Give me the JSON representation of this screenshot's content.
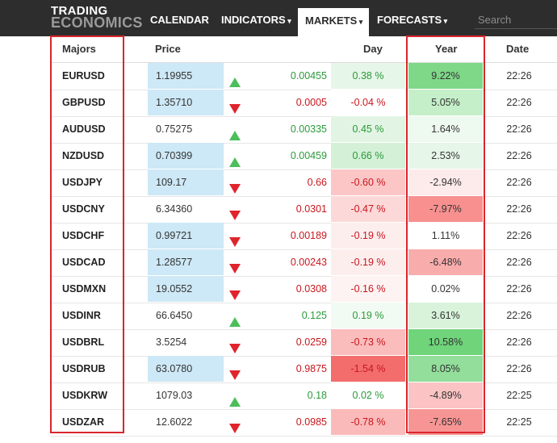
{
  "brand": {
    "line1": "TRADING",
    "line2": "ECONOMICS"
  },
  "nav": [
    {
      "label": "CALENDAR"
    },
    {
      "label": "INDICATORS"
    },
    {
      "label": "MARKETS"
    },
    {
      "label": "FORECASTS"
    }
  ],
  "search": {
    "placeholder": "Search"
  },
  "colors": {
    "up": "#2a9a3a",
    "down": "#c8171e",
    "price_highlight": "#cde8f6"
  },
  "table": {
    "headers": {
      "symbol": "Majors",
      "price": "Price",
      "day": "Day",
      "year": "Year",
      "date": "Date"
    },
    "rows": [
      {
        "symbol": "EURUSD",
        "price": "1.19955",
        "dir": "up",
        "change": "0.00455",
        "day": "0.38 %",
        "year": "9.22%",
        "date": "22:26",
        "price_hl": true,
        "day_bg": "#e6f6e8",
        "year_bg": "#7ed888"
      },
      {
        "symbol": "GBPUSD",
        "price": "1.35710",
        "dir": "down",
        "change": "0.0005",
        "day": "-0.04 %",
        "year": "5.05%",
        "date": "22:26",
        "price_hl": true,
        "day_bg": "#ffffff",
        "year_bg": "#c4efc8"
      },
      {
        "symbol": "AUDUSD",
        "price": "0.75275",
        "dir": "up",
        "change": "0.00335",
        "day": "0.45 %",
        "year": "1.64%",
        "date": "22:26",
        "price_hl": false,
        "day_bg": "#e2f5e4",
        "year_bg": "#eef9ef"
      },
      {
        "symbol": "NZDUSD",
        "price": "0.70399",
        "dir": "up",
        "change": "0.00459",
        "day": "0.66 %",
        "year": "2.53%",
        "date": "22:26",
        "price_hl": true,
        "day_bg": "#d4f1d7",
        "year_bg": "#e6f6e8"
      },
      {
        "symbol": "USDJPY",
        "price": "109.17",
        "dir": "down",
        "change": "0.66",
        "day": "-0.60 %",
        "year": "-2.94%",
        "date": "22:26",
        "price_hl": true,
        "day_bg": "#fcc6c6",
        "year_bg": "#fdeaea"
      },
      {
        "symbol": "USDCNY",
        "price": "6.34360",
        "dir": "down",
        "change": "0.0301",
        "day": "-0.47 %",
        "year": "-7.97%",
        "date": "22:26",
        "price_hl": false,
        "day_bg": "#fdd8d8",
        "year_bg": "#f7908f"
      },
      {
        "symbol": "USDCHF",
        "price": "0.99721",
        "dir": "down",
        "change": "0.00189",
        "day": "-0.19 %",
        "year": "1.11%",
        "date": "22:26",
        "price_hl": true,
        "day_bg": "#fdeeee",
        "year_bg": "#ffffff"
      },
      {
        "symbol": "USDCAD",
        "price": "1.28577",
        "dir": "down",
        "change": "0.00243",
        "day": "-0.19 %",
        "year": "-6.48%",
        "date": "22:26",
        "price_hl": true,
        "day_bg": "#fdeeee",
        "year_bg": "#f9acac"
      },
      {
        "symbol": "USDMXN",
        "price": "19.0552",
        "dir": "down",
        "change": "0.0308",
        "day": "-0.16 %",
        "year": "0.02%",
        "date": "22:26",
        "price_hl": true,
        "day_bg": "#fef3f3",
        "year_bg": "#ffffff"
      },
      {
        "symbol": "USDINR",
        "price": "66.6450",
        "dir": "up",
        "change": "0.125",
        "day": "0.19 %",
        "year": "3.61%",
        "date": "22:26",
        "price_hl": false,
        "day_bg": "#f2fbf3",
        "year_bg": "#d8f3da"
      },
      {
        "symbol": "USDBRL",
        "price": "3.5254",
        "dir": "down",
        "change": "0.0259",
        "day": "-0.73 %",
        "year": "10.58%",
        "date": "22:26",
        "price_hl": false,
        "day_bg": "#fbbcbc",
        "year_bg": "#6fd47a"
      },
      {
        "symbol": "USDRUB",
        "price": "63.0780",
        "dir": "down",
        "change": "0.9875",
        "day": "-1.54 %",
        "year": "8.05%",
        "date": "22:26",
        "price_hl": true,
        "day_bg": "#f36d6d",
        "year_bg": "#92de9a"
      },
      {
        "symbol": "USDKRW",
        "price": "1079.03",
        "dir": "up",
        "change": "0.18",
        "day": "0.02 %",
        "year": "-4.89%",
        "date": "22:25",
        "price_hl": false,
        "day_bg": "#ffffff",
        "year_bg": "#fbc3c3"
      },
      {
        "symbol": "USDZAR",
        "price": "12.6022",
        "dir": "down",
        "change": "0.0985",
        "day": "-0.78 %",
        "year": "-7.65%",
        "date": "22:25",
        "price_hl": false,
        "day_bg": "#fbbaba",
        "year_bg": "#f79595"
      }
    ]
  }
}
